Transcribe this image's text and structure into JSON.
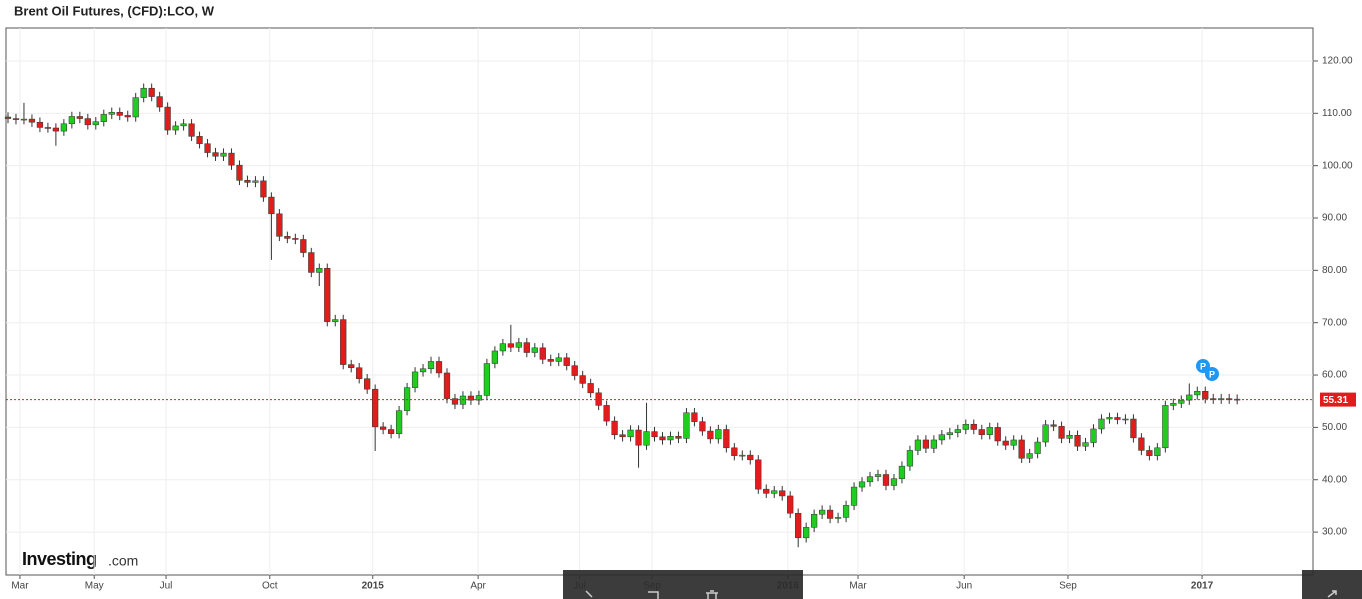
{
  "chart_data": {
    "type": "candlestick",
    "title": "Brent Oil Futures, (CFD):LCO, W",
    "logo": {
      "brand": "Investing",
      "suffix": ".com"
    },
    "annotations": [
      "P",
      "P"
    ],
    "xlim": [
      -0.25,
      163.5
    ],
    "xticks": [
      {
        "value": 1.5,
        "label": "Mar"
      },
      {
        "value": 10.8,
        "label": "May"
      },
      {
        "value": 19.8,
        "label": "Jul"
      },
      {
        "value": 32.8,
        "label": "Oct"
      },
      {
        "value": 45.7,
        "label": "2015"
      },
      {
        "value": 58.9,
        "label": "Apr"
      },
      {
        "value": 71.6,
        "label": "Jul"
      },
      {
        "value": 80.7,
        "label": "Sep"
      },
      {
        "value": 97.7,
        "label": "2016"
      },
      {
        "value": 106.5,
        "label": "Mar"
      },
      {
        "value": 119.8,
        "label": "Jun"
      },
      {
        "value": 132.8,
        "label": "Sep"
      },
      {
        "value": 149.6,
        "label": "2017"
      }
    ],
    "ylim": [
      21.8,
      126.3
    ],
    "yticks": [
      {
        "value": 30,
        "label": "30.00"
      },
      {
        "value": 40,
        "label": "40.00"
      },
      {
        "value": 50,
        "label": "50.00"
      },
      {
        "value": 60,
        "label": "60.00"
      },
      {
        "value": 70,
        "label": "70.00"
      },
      {
        "value": 80,
        "label": "80.00"
      },
      {
        "value": 90,
        "label": "90.00"
      },
      {
        "value": 100,
        "label": "100.00"
      },
      {
        "value": 110,
        "label": "110.00"
      },
      {
        "value": 120,
        "label": "120.00"
      }
    ],
    "grid": true,
    "up_color": "#1fcc1f",
    "down_color": "#e01c1c",
    "price_line": 55.31,
    "price_line_color": "#e01c1c",
    "open": [
      109.3,
      109,
      108.8,
      108.9,
      108.3,
      107.3,
      107.2,
      106.6,
      108,
      109.4,
      109,
      107.8,
      108.4,
      109.8,
      110.2,
      109.6,
      109.3,
      113,
      114.8,
      113.2,
      111.2,
      106.8,
      107.6,
      108,
      105.6,
      104.2,
      102.5,
      101.8,
      102.4,
      100.1,
      97.2,
      96.8,
      97.1,
      94,
      90.8,
      86.5,
      86.1,
      85.9,
      83.4,
      79.6,
      80.4,
      70.2,
      70.6,
      62,
      61.4,
      59.3,
      57.3,
      50.1,
      49.6,
      48.8,
      53.2,
      57.6,
      60.6,
      61.2,
      62.6,
      60.4,
      55.5,
      54.4,
      56,
      55.2,
      56.1,
      62.2,
      64.6,
      66,
      65.3,
      66.2,
      64.3,
      65.2,
      63,
      62.6,
      63.3,
      61.8,
      59.9,
      58.4,
      56.6,
      54.2,
      51.2,
      48.6,
      48.2,
      49.5,
      46.6,
      49.2,
      48.2,
      47.6,
      48.3,
      47.9,
      52.8,
      51.1,
      49.3,
      47.8,
      49.6,
      46.1,
      44.6,
      44.7,
      43.8,
      38.2,
      37.4,
      37.9,
      36.9,
      33.6,
      28.9,
      30.9,
      33.4,
      34.2,
      32.6,
      32.8,
      35.1,
      38.6,
      39.6,
      40.6,
      41,
      38.9,
      40.2,
      42.6,
      45.6,
      47.6,
      46,
      47.6,
      48.6,
      49,
      49.6,
      50.6,
      49.6,
      48.6,
      50,
      47.4,
      46.6,
      47.6,
      44.1,
      45,
      47.2,
      50.5,
      50.2,
      47.9,
      48.5,
      46.4,
      47.1,
      49.7,
      51.6,
      51.9,
      51.5,
      51.6,
      48,
      45.6,
      44.6,
      46.1,
      54.2,
      54.6,
      55.2,
      56.2,
      56.9,
      55.5,
      55.4,
      55.5,
      55.4
    ],
    "high": [
      110.2,
      109.9,
      112,
      109.8,
      109.2,
      108.2,
      108.1,
      108.9,
      110.3,
      110.3,
      109.9,
      109.3,
      110.7,
      111.1,
      111.1,
      110.5,
      113.9,
      115.7,
      115.7,
      114.1,
      112.1,
      108.5,
      108.9,
      108.9,
      106.5,
      105.1,
      103.4,
      103.3,
      103.3,
      101,
      98.1,
      98,
      98,
      94.9,
      91.7,
      87.4,
      87,
      86.8,
      84.3,
      81.3,
      81.3,
      71.5,
      71.5,
      62.9,
      62.3,
      60.2,
      58.2,
      51,
      50.5,
      54.1,
      58.5,
      61.5,
      62.1,
      63.5,
      63.5,
      61.3,
      56.4,
      56.9,
      56.9,
      57,
      63.1,
      65.5,
      66.9,
      69.6,
      67.1,
      67.1,
      66.1,
      66.1,
      63.9,
      64.2,
      64.2,
      62.7,
      60.8,
      59.3,
      57.5,
      55.1,
      52.1,
      49.5,
      50.4,
      50.4,
      54.7,
      50.1,
      49.1,
      49.2,
      49.2,
      53.7,
      53.7,
      52,
      50.2,
      50.5,
      50.5,
      47,
      45.6,
      45.6,
      44.7,
      39.1,
      38.8,
      38.8,
      37.8,
      34.5,
      31.8,
      34.3,
      35.1,
      35.1,
      33.7,
      36,
      39.5,
      40.5,
      41.5,
      41.9,
      41.9,
      41.1,
      43.5,
      46.5,
      48.5,
      48.5,
      48.5,
      49.5,
      49.9,
      50.5,
      51.5,
      51.5,
      50.5,
      50.9,
      50.9,
      48.3,
      48.5,
      48.5,
      45.9,
      48.1,
      51.4,
      51.4,
      51.1,
      49.4,
      49.4,
      48,
      50.6,
      52.5,
      52.8,
      52.8,
      52.5,
      52.5,
      48.9,
      46.5,
      47,
      55.1,
      55.5,
      56.1,
      58.4,
      57.8,
      57.8,
      56.4,
      56.4,
      56.4,
      56.3
    ],
    "low": [
      108.1,
      107.9,
      107.9,
      107.4,
      106.4,
      106.3,
      103.8,
      105.7,
      107.1,
      108.1,
      106.9,
      106.9,
      107.5,
      108.9,
      108.7,
      108.4,
      108.4,
      112.1,
      112.3,
      110.3,
      105.9,
      105.9,
      106.7,
      104.7,
      103.3,
      101.6,
      100.9,
      100.9,
      99.2,
      96.3,
      95.9,
      95.9,
      93.1,
      82,
      85.6,
      85.2,
      85,
      82.5,
      78.7,
      77,
      69.3,
      69.3,
      61.1,
      60.5,
      58.4,
      56.4,
      45.5,
      48.7,
      47.9,
      47.9,
      52.3,
      56.7,
      59.7,
      60.3,
      59.5,
      54.6,
      53.5,
      53.5,
      54.3,
      54.3,
      55.2,
      61.3,
      63.7,
      64.4,
      64.4,
      63.4,
      63.4,
      62.1,
      61.7,
      61.7,
      60.9,
      59,
      57.5,
      55.7,
      53.3,
      50.3,
      47.7,
      47.3,
      47.3,
      42.3,
      45.7,
      47.3,
      46.7,
      46.7,
      47,
      47,
      50.2,
      48.4,
      46.9,
      46.9,
      45.2,
      43.7,
      43.7,
      42.9,
      37.3,
      36.5,
      36.5,
      36,
      32.7,
      27.1,
      28,
      30,
      32.5,
      31.7,
      31.7,
      31.9,
      34.2,
      37.7,
      38.7,
      39.7,
      38,
      38,
      39.3,
      41.7,
      44.7,
      45.1,
      45.1,
      46.7,
      47.7,
      48.1,
      48.7,
      48.7,
      47.7,
      47.7,
      46.5,
      45.7,
      45.7,
      43.2,
      43.2,
      44.1,
      46.3,
      49.3,
      47,
      47,
      45.5,
      45.5,
      46.2,
      48.8,
      50.7,
      50.6,
      50.6,
      47.1,
      44.7,
      43.7,
      43.7,
      45.2,
      53.3,
      53.7,
      54.3,
      55.3,
      54.6,
      54.5,
      54.5,
      54.5,
      54.4
    ],
    "close": [
      109,
      108.8,
      108.9,
      108.3,
      107.3,
      107.2,
      106.6,
      108,
      109.4,
      109,
      107.8,
      108.4,
      109.8,
      110.2,
      109.6,
      109.3,
      113,
      114.8,
      113.2,
      111.2,
      106.8,
      107.6,
      108,
      105.6,
      104.2,
      102.5,
      101.8,
      102.4,
      100.1,
      97.2,
      96.8,
      97.1,
      94,
      90.8,
      86.5,
      86.1,
      85.9,
      83.4,
      79.6,
      80.4,
      70.2,
      70.6,
      62,
      61.4,
      59.3,
      57.3,
      50.1,
      49.6,
      48.8,
      53.2,
      57.6,
      60.6,
      61.2,
      62.6,
      60.4,
      55.5,
      54.4,
      56,
      55.2,
      56.1,
      62.2,
      64.6,
      66,
      65.3,
      66.2,
      64.3,
      65.2,
      63,
      62.6,
      63.3,
      61.8,
      59.9,
      58.4,
      56.6,
      54.2,
      51.2,
      48.6,
      48.2,
      49.5,
      46.6,
      49.2,
      48.2,
      47.6,
      48.3,
      47.9,
      52.8,
      51.1,
      49.3,
      47.8,
      49.6,
      46.1,
      44.6,
      44.7,
      43.8,
      38.2,
      37.4,
      37.9,
      36.9,
      33.6,
      28.9,
      30.9,
      33.4,
      34.2,
      32.6,
      32.8,
      35.1,
      38.6,
      39.6,
      40.6,
      41,
      38.9,
      40.2,
      42.6,
      45.6,
      47.6,
      46,
      47.6,
      48.6,
      49,
      49.6,
      50.6,
      49.6,
      48.6,
      50,
      47.4,
      46.6,
      47.6,
      44.1,
      45,
      47.2,
      50.5,
      50.2,
      47.9,
      48.5,
      46.4,
      47.1,
      49.7,
      51.6,
      51.9,
      51.5,
      51.6,
      48,
      45.6,
      44.6,
      46.1,
      54.2,
      54.6,
      55.2,
      56.2,
      56.9,
      55.5,
      55.4,
      55.5,
      55.4,
      55.31
    ]
  }
}
